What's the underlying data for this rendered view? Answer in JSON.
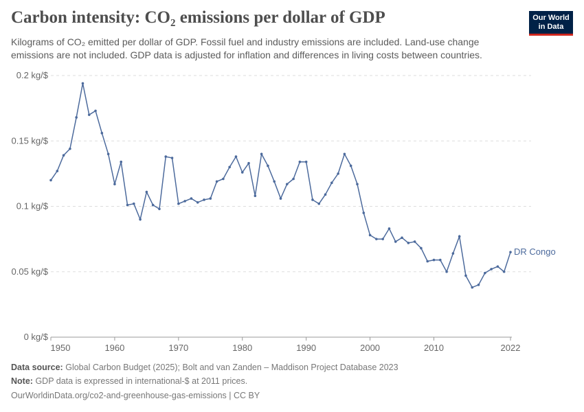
{
  "header": {
    "title": "Carbon intensity: CO₂ emissions per dollar of GDP",
    "subtitle": "Kilograms of CO₂ emitted per dollar of GDP. Fossil fuel and industry emissions are included. Land-use change emissions are not included. GDP data is adjusted for inflation and differences in living costs between countries.",
    "logo": "Our World in Data"
  },
  "footer": {
    "source_label": "Data source:",
    "source": "Global Carbon Budget (2025); Bolt and van Zanden – Maddison Project Database 2023",
    "note_label": "Note:",
    "note": "GDP data is expressed in international-$ at 2011 prices.",
    "url": "OurWorldinData.org/co2-and-greenhouse-gas-emissions | CC BY"
  },
  "colors": {
    "series": "#4c6a9c",
    "grid": "#dddddd",
    "axis": "#999999",
    "text": "#666666"
  },
  "chart_data": {
    "type": "line",
    "title": "Carbon intensity: CO₂ emissions per dollar of GDP",
    "xlim": [
      1950,
      2022
    ],
    "ylim": [
      0,
      0.2
    ],
    "grid": "horizontal dashed",
    "x_ticks": [
      "1950",
      "1960",
      "1970",
      "1980",
      "1990",
      "2000",
      "2010",
      "2022"
    ],
    "x_tick_values": [
      1950,
      1960,
      1970,
      1980,
      1990,
      2000,
      2010,
      2022
    ],
    "y_ticks": [
      "0 kg/$",
      "0.05 kg/$",
      "0.1 kg/$",
      "0.15 kg/$",
      "0.2 kg/$"
    ],
    "y_tick_values": [
      0,
      0.05,
      0.1,
      0.15,
      0.2
    ],
    "series": [
      {
        "name": "DR Congo",
        "x": [
          1950,
          1951,
          1952,
          1953,
          1954,
          1955,
          1956,
          1957,
          1958,
          1959,
          1960,
          1961,
          1962,
          1963,
          1964,
          1965,
          1966,
          1967,
          1968,
          1969,
          1970,
          1971,
          1972,
          1973,
          1974,
          1975,
          1976,
          1977,
          1978,
          1979,
          1980,
          1981,
          1982,
          1983,
          1984,
          1985,
          1986,
          1987,
          1988,
          1989,
          1990,
          1991,
          1992,
          1993,
          1994,
          1995,
          1996,
          1997,
          1998,
          1999,
          2000,
          2001,
          2002,
          2003,
          2004,
          2005,
          2006,
          2007,
          2008,
          2009,
          2010,
          2011,
          2012,
          2013,
          2014,
          2015,
          2016,
          2017,
          2018,
          2019,
          2020,
          2021,
          2022
        ],
        "values": [
          0.12,
          0.127,
          0.139,
          0.144,
          0.168,
          0.194,
          0.17,
          0.173,
          0.156,
          0.14,
          0.117,
          0.134,
          0.101,
          0.102,
          0.09,
          0.111,
          0.101,
          0.098,
          0.138,
          0.137,
          0.102,
          0.104,
          0.106,
          0.103,
          0.105,
          0.106,
          0.119,
          0.121,
          0.13,
          0.138,
          0.126,
          0.133,
          0.108,
          0.14,
          0.131,
          0.119,
          0.106,
          0.117,
          0.121,
          0.134,
          0.134,
          0.105,
          0.102,
          0.109,
          0.118,
          0.125,
          0.14,
          0.131,
          0.117,
          0.095,
          0.078,
          0.075,
          0.075,
          0.083,
          0.073,
          0.076,
          0.072,
          0.073,
          0.068,
          0.058,
          0.059,
          0.059,
          0.05,
          0.064,
          0.077,
          0.047,
          0.038,
          0.04,
          0.049,
          0.052,
          0.054,
          0.05,
          0.065
        ]
      }
    ]
  }
}
